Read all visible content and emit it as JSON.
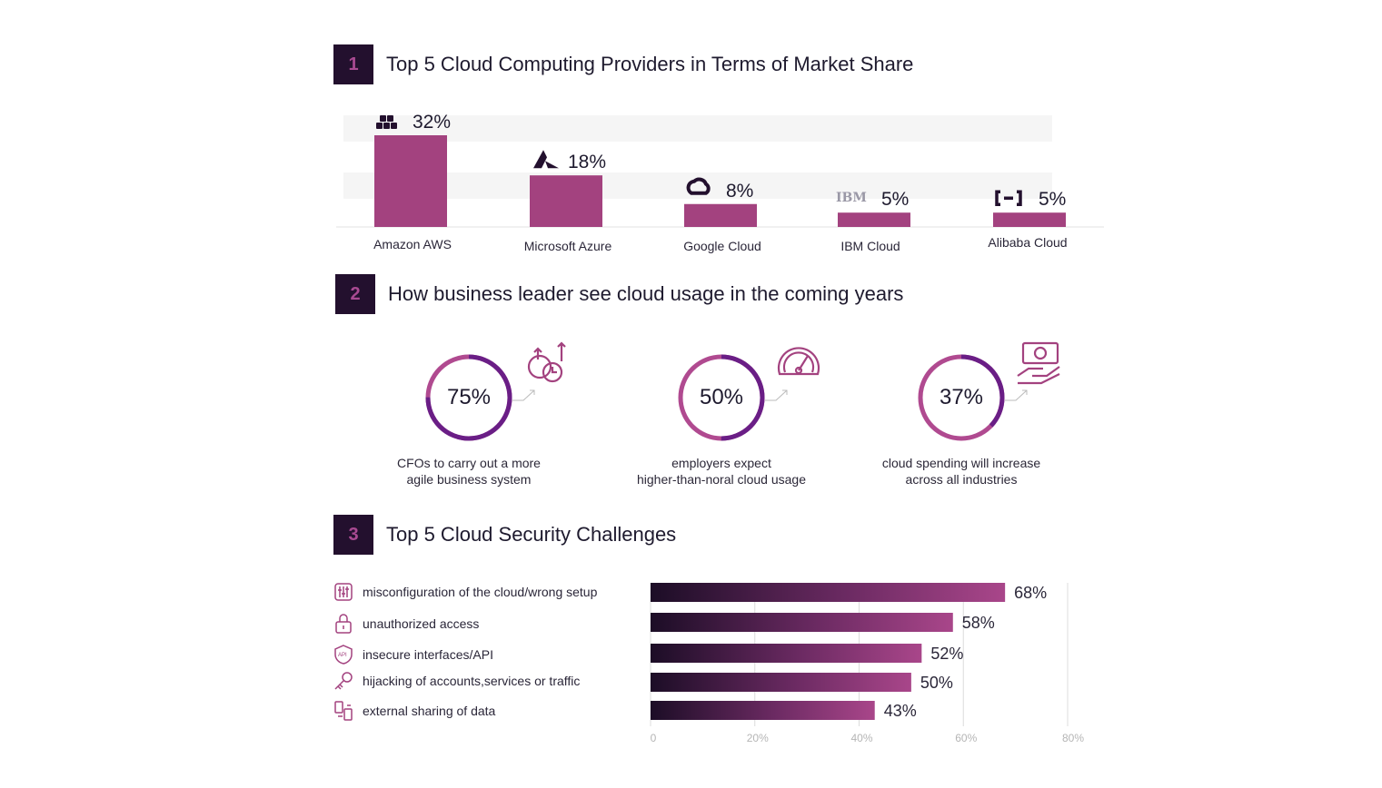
{
  "sections": [
    {
      "num": "1",
      "title": "Top 5 Cloud Computing Providers in Terms of Market Share"
    },
    {
      "num": "2",
      "title": "How business leader see cloud usage in the coming years"
    },
    {
      "num": "3",
      "title": "Top 5 Cloud Security Challenges"
    }
  ],
  "stats": [
    {
      "value": "75%",
      "percent": 75,
      "line1": "CFOs to carry out a more",
      "line2": "agile business system",
      "icon": "gear-clock-growth-icon"
    },
    {
      "value": "50%",
      "percent": 50,
      "line1": "employers expect",
      "line2": "higher-than-noral cloud usage",
      "icon": "speedometer-icon"
    },
    {
      "value": "37%",
      "percent": 37,
      "line1": "cloud spending will increase",
      "line2": "across all industries",
      "icon": "hand-money-icon"
    }
  ],
  "challenges": [
    {
      "label": "misconfiguration of the cloud/wrong setup",
      "icon": "settings-sliders-icon"
    },
    {
      "label": "unauthorized access",
      "icon": "padlock-icon"
    },
    {
      "label": "insecure interfaces/API",
      "icon": "api-shield-icon"
    },
    {
      "label": "hijacking of accounts,services or traffic",
      "icon": "key-icon"
    },
    {
      "label": "external sharing of data",
      "icon": "device-share-icon"
    }
  ],
  "colors": {
    "bar": "#a3427f",
    "dark": "#23102e",
    "ring": "#6a1e86",
    "ringTrack": "#b04a90",
    "axis": "#bdbdbd"
  },
  "chart_data": [
    {
      "type": "bar",
      "title": "Top 5 Cloud Computing Providers in Terms of Market Share",
      "categories": [
        "Amazon AWS",
        "Microsoft Azure",
        "Google Cloud",
        "IBM Cloud",
        "Alibaba Cloud"
      ],
      "values": [
        32,
        18,
        8,
        5,
        5
      ],
      "value_labels": [
        "32%",
        "18%",
        "8%",
        "5%",
        "5%"
      ],
      "logos": [
        "aws-logo-icon",
        "azure-logo-icon",
        "google-cloud-logo-icon",
        "ibm-logo-icon",
        "alibaba-cloud-logo-icon"
      ],
      "ylim": [
        0,
        32
      ]
    },
    {
      "type": "bar",
      "orientation": "horizontal",
      "title": "Top 5 Cloud Security Challenges",
      "categories": [
        "misconfiguration of the cloud/wrong setup",
        "unauthorized access",
        "insecure interfaces/API",
        "hijacking of accounts,services or traffic",
        "external sharing of data"
      ],
      "values": [
        68,
        58,
        52,
        50,
        43
      ],
      "value_labels": [
        "68%",
        "58%",
        "52%",
        "50%",
        "43%"
      ],
      "xlim": [
        0,
        80
      ],
      "xticks": [
        "0",
        "20%",
        "40%",
        "60%",
        "80%"
      ],
      "grid": true
    }
  ]
}
